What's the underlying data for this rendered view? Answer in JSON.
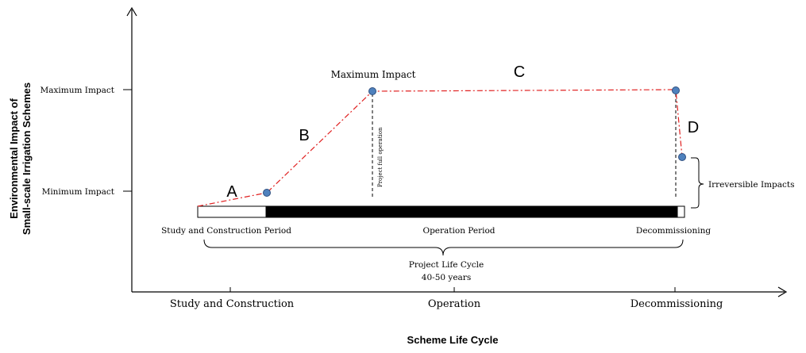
{
  "y_axis_title": [
    "Environmental Impact of",
    "Small-scale Irrigation Schemes"
  ],
  "x_axis_title": "Scheme Life Cycle",
  "y_ticks": {
    "max": "Maximum Impact",
    "min": "Minimum Impact"
  },
  "x_ticks": [
    "Study and Construction",
    "Operation",
    "Decommissioning"
  ],
  "phase_letters": [
    "A",
    "B",
    "C",
    "D"
  ],
  "peak_label": "Maximum Impact",
  "full_operation_label": "Project full operation",
  "irreversible_label": "Irreversible Impacts",
  "period_labels": [
    "Study and Construction Period",
    "Operation Period",
    "Decommissioning"
  ],
  "life_cycle": {
    "label": "Project Life Cycle",
    "duration": "40-50 years"
  },
  "colors": {
    "curve": "#e02020",
    "point_fill": "#4f81bd",
    "point_stroke": "#2f4f7f",
    "axis": "#000000",
    "bar": "#000000"
  }
}
